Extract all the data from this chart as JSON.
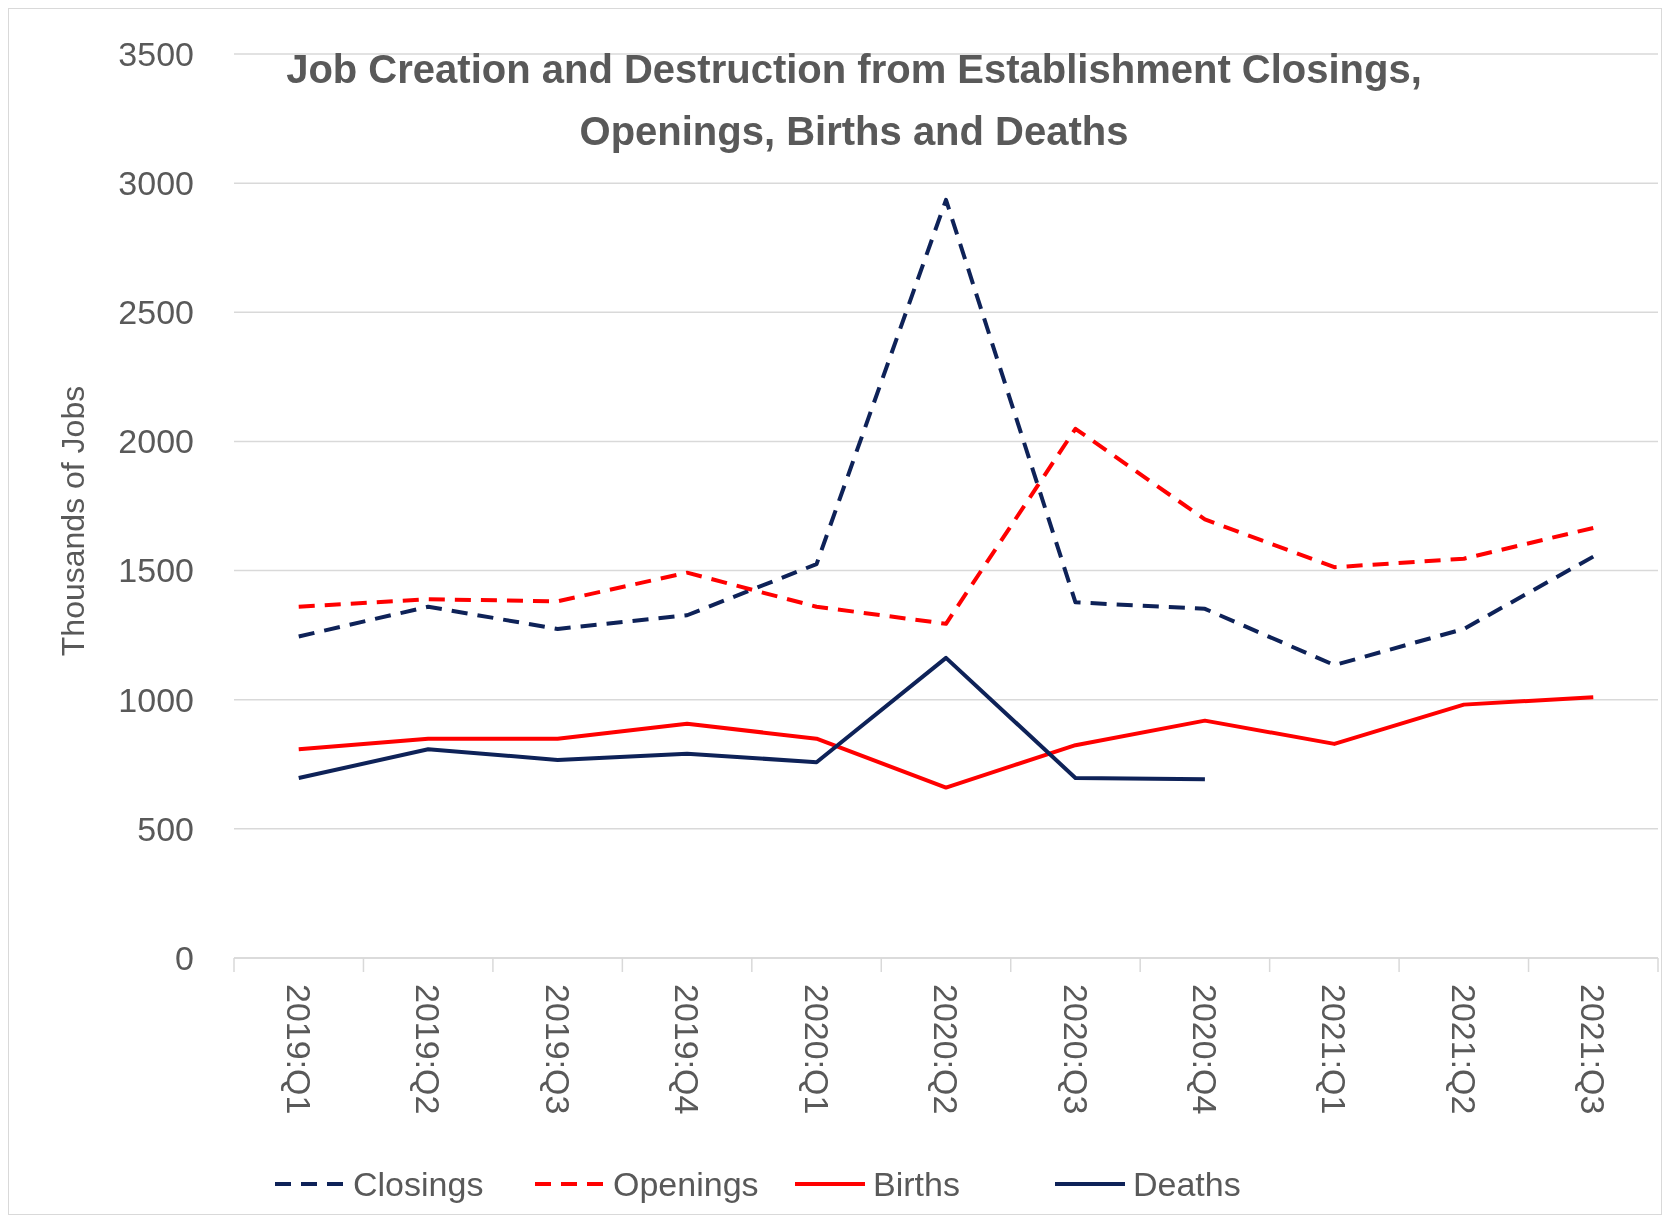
{
  "chart_data": {
    "type": "line",
    "title": "Job Creation and Destruction from Establishment Closings, Openings, Births and Deaths",
    "ylabel": "Thousands of Jobs",
    "categories": [
      "2019:Q1",
      "2019:Q2",
      "2019:Q3",
      "2019:Q4",
      "2020:Q1",
      "2020:Q2",
      "2020:Q3",
      "2020:Q4",
      "2021:Q1",
      "2021:Q2",
      "2021:Q3"
    ],
    "series": [
      {
        "name": "Closings",
        "color": "#0e2258",
        "line_style": "dashed",
        "values": [
          1245,
          1360,
          1274,
          1327,
          1525,
          2935,
          1377,
          1352,
          1134,
          1274,
          1554
        ]
      },
      {
        "name": "Openings",
        "color": "#ff0000",
        "line_style": "dashed",
        "values": [
          1360,
          1389,
          1381,
          1492,
          1360,
          1294,
          2049,
          1698,
          1513,
          1546,
          1665
        ]
      },
      {
        "name": "Births",
        "color": "#ff0000",
        "line_style": "solid",
        "values": [
          808,
          849,
          849,
          907,
          849,
          660,
          824,
          919,
          829,
          981,
          1010
        ]
      },
      {
        "name": "Deaths",
        "color": "#0e2258",
        "line_style": "solid",
        "values": [
          697,
          808,
          767,
          791,
          758,
          1162,
          697,
          692,
          null,
          null,
          null
        ]
      }
    ],
    "ylim": [
      0,
      3500
    ],
    "yticks": [
      0,
      500,
      1000,
      1500,
      2000,
      2500,
      3000,
      3500
    ],
    "grid": "y",
    "legend": "bottom"
  }
}
